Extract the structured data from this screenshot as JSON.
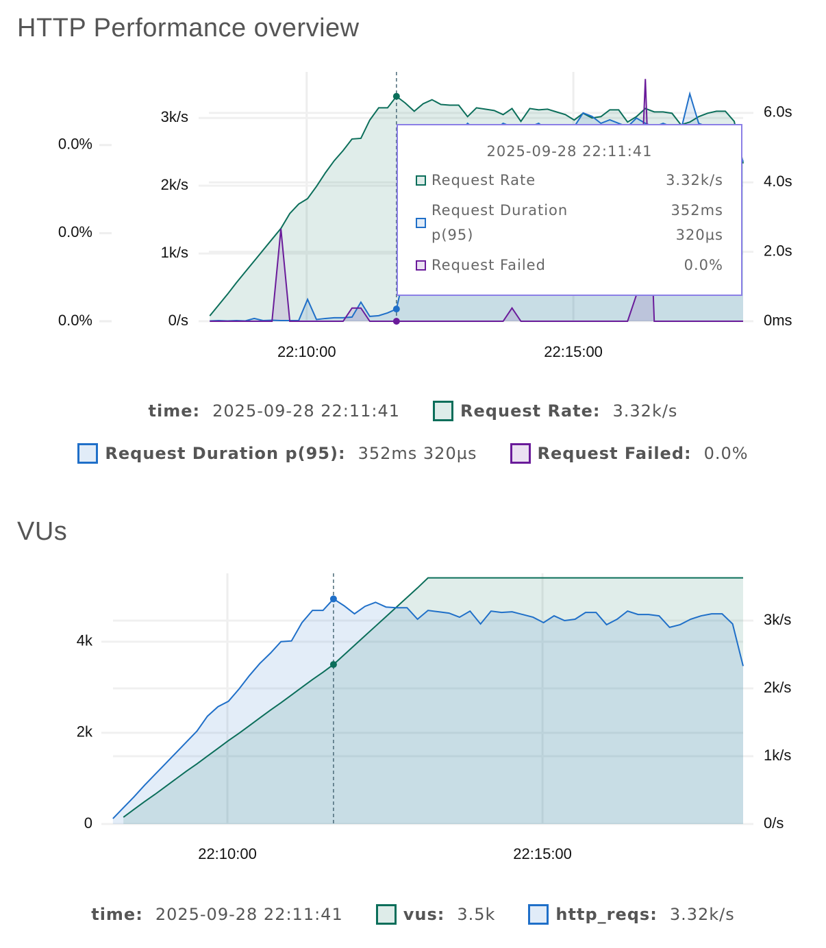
{
  "chart_data": [
    {
      "type": "line",
      "title": "HTTP Performance overview",
      "x": [
        "22:08:11",
        "22:08:21",
        "22:08:31",
        "22:08:41",
        "22:08:51",
        "22:09:01",
        "22:09:11",
        "22:09:21",
        "22:09:31",
        "22:09:41",
        "22:09:51",
        "22:10:01",
        "22:10:11",
        "22:10:21",
        "22:10:31",
        "22:10:41",
        "22:10:51",
        "22:11:01",
        "22:11:11",
        "22:11:21",
        "22:11:31",
        "22:11:41",
        "22:11:51",
        "22:12:01",
        "22:12:11",
        "22:12:21",
        "22:12:31",
        "22:12:41",
        "22:12:51",
        "22:13:01",
        "22:13:11",
        "22:13:21",
        "22:13:31",
        "22:13:41",
        "22:13:51",
        "22:14:01",
        "22:14:11",
        "22:14:21",
        "22:14:31",
        "22:14:41",
        "22:14:51",
        "22:15:01",
        "22:15:11",
        "22:15:21",
        "22:15:31",
        "22:15:41",
        "22:15:51",
        "22:16:01",
        "22:16:11",
        "22:16:21",
        "22:16:31",
        "22:16:41",
        "22:16:51",
        "22:17:01",
        "22:17:11",
        "22:17:21",
        "22:17:31",
        "22:17:41",
        "22:17:51",
        "22:18:01",
        "22:18:11"
      ],
      "xlim": [
        "22:08:10",
        "22:18:11"
      ],
      "xticks": [
        "22:10:00",
        "22:15:00"
      ],
      "ylim": [
        0,
        3680
      ],
      "yticks": [
        {
          "value": 0,
          "label": "0/s"
        },
        {
          "value": 1000,
          "label": "1k/s"
        },
        {
          "value": 2000,
          "label": "2k/s"
        },
        {
          "value": 3000,
          "label": "3k/s"
        }
      ],
      "y2lim": [
        0,
        7.18
      ],
      "y2ticks": [
        {
          "value": 0,
          "label": "0ms"
        },
        {
          "value": 2,
          "label": "2.0s"
        },
        {
          "value": 4,
          "label": "4.0s"
        },
        {
          "value": 6,
          "label": "6.0s"
        }
      ],
      "y3lim": [
        0,
        0.0566
      ],
      "y3ticks": [
        {
          "value": 0,
          "label": "0.0%"
        },
        {
          "value": 0.02,
          "label": "0.0%"
        },
        {
          "value": 0.04,
          "label": "0.0%"
        }
      ],
      "grid": true,
      "series": [
        {
          "name": "Request Rate",
          "color": "#0b6e5a",
          "axis": "y",
          "values": [
            80,
            240,
            400,
            570,
            730,
            890,
            1050,
            1210,
            1370,
            1590,
            1730,
            1810,
            1990,
            2190,
            2370,
            2520,
            2690,
            2700,
            2970,
            3150,
            3150,
            3320,
            3220,
            3100,
            3210,
            3270,
            3200,
            3190,
            3190,
            3020,
            3150,
            3130,
            3110,
            3050,
            3140,
            2950,
            3140,
            3120,
            3130,
            3090,
            3050,
            2970,
            3070,
            3000,
            3020,
            3120,
            3120,
            2940,
            3020,
            3140,
            3090,
            3090,
            3070,
            2900,
            2940,
            3020,
            3070,
            3100,
            3100,
            2950,
            2330
          ]
        },
        {
          "name": "Request Duration p(95)",
          "color": "#1f6fc8",
          "axis": "y2",
          "values": [
            0.01,
            0.02,
            0.01,
            0.02,
            0.01,
            0.08,
            0.02,
            0.03,
            0.02,
            0.02,
            0.02,
            0.63,
            0.05,
            0.08,
            0.1,
            0.1,
            0.12,
            0.55,
            0.14,
            0.16,
            0.24,
            0.35232,
            1.5,
            3.2,
            4.6,
            5.3,
            5.5,
            5.6,
            5.4,
            5.7,
            5.5,
            5.6,
            5.5,
            5.7,
            5.6,
            5.4,
            5.6,
            5.7,
            5.5,
            5.6,
            5.5,
            5.6,
            6.0,
            5.9,
            5.7,
            5.8,
            5.7,
            5.6,
            5.85,
            5.7,
            5.6,
            5.7,
            5.6,
            5.5,
            6.55,
            5.7,
            5.6,
            5.5,
            5.4,
            5.2,
            4.6
          ]
        },
        {
          "name": "Request Failed",
          "color": "#6a1b9a",
          "axis": "y3",
          "values": [
            0,
            0,
            0,
            0,
            0,
            0,
            0,
            0,
            0.021,
            0,
            0,
            0,
            0,
            0,
            0,
            0,
            0.003,
            0.003,
            0,
            0,
            0,
            0,
            0,
            0,
            0,
            0,
            0,
            0,
            0,
            0,
            0,
            0,
            0,
            0,
            0.003,
            0,
            0,
            0,
            0,
            0,
            0,
            0,
            0,
            0,
            0,
            0,
            0,
            0,
            0.006,
            0.055,
            0,
            0,
            0,
            0,
            0,
            0,
            0,
            0,
            0,
            0,
            0
          ]
        }
      ],
      "cursor": {
        "index": 21,
        "label": "time",
        "time": "2025-09-28 22:11:41",
        "value_labels": [
          "3.32k/s",
          "352ms 320µs",
          "0.0%"
        ]
      },
      "tooltip": true
    },
    {
      "type": "line",
      "title": "VUs",
      "x": [
        "22:08:11",
        "22:08:21",
        "22:08:31",
        "22:08:41",
        "22:08:51",
        "22:09:01",
        "22:09:11",
        "22:09:21",
        "22:09:31",
        "22:09:41",
        "22:09:51",
        "22:10:01",
        "22:10:11",
        "22:10:21",
        "22:10:31",
        "22:10:41",
        "22:10:51",
        "22:11:01",
        "22:11:11",
        "22:11:21",
        "22:11:31",
        "22:11:41",
        "22:11:51",
        "22:12:01",
        "22:12:11",
        "22:12:21",
        "22:12:31",
        "22:12:41",
        "22:12:51",
        "22:13:01",
        "22:13:11",
        "22:13:21",
        "22:13:31",
        "22:13:41",
        "22:13:51",
        "22:14:01",
        "22:14:11",
        "22:14:21",
        "22:14:31",
        "22:14:41",
        "22:14:51",
        "22:15:01",
        "22:15:11",
        "22:15:21",
        "22:15:31",
        "22:15:41",
        "22:15:51",
        "22:16:01",
        "22:16:11",
        "22:16:21",
        "22:16:31",
        "22:16:41",
        "22:16:51",
        "22:17:01",
        "22:17:11",
        "22:17:21",
        "22:17:31",
        "22:17:41",
        "22:17:51",
        "22:18:01",
        "22:18:11"
      ],
      "xlim": [
        "22:08:00",
        "22:18:11"
      ],
      "xticks": [
        "22:10:00",
        "22:15:00"
      ],
      "ylim": [
        0,
        5500
      ],
      "yticks": [
        0,
        {
          "value": 2000,
          "label": "2k"
        },
        {
          "value": 4000,
          "label": "4k"
        }
      ],
      "y2lim": [
        0,
        3697
      ],
      "y2ticks": [
        {
          "value": 0,
          "label": "0/s"
        },
        {
          "value": 1000,
          "label": "1k/s"
        },
        {
          "value": 2000,
          "label": "2k/s"
        },
        {
          "value": 3000,
          "label": "3k/s"
        }
      ],
      "grid": true,
      "series": [
        {
          "name": "vus",
          "color": "#0b6e5a",
          "axis": "y",
          "values": [
            null,
            150,
            320,
            490,
            650,
            820,
            990,
            1160,
            1320,
            1490,
            1660,
            1830,
            1990,
            2160,
            2330,
            2500,
            2660,
            2830,
            3000,
            3170,
            3330,
            3500,
            3710,
            3920,
            4130,
            4340,
            4550,
            4760,
            4970,
            5180,
            5400,
            5400,
            5400,
            5400,
            5400,
            5400,
            5400,
            5400,
            5400,
            5400,
            5400,
            5400,
            5400,
            5400,
            5400,
            5400,
            5400,
            5400,
            5400,
            5400,
            5400,
            5400,
            5400,
            5400,
            5400,
            5400,
            5400,
            5400,
            5400,
            5400,
            5400
          ]
        },
        {
          "name": "http_reqs",
          "color": "#1f6fc8",
          "axis": "y2",
          "values": [
            80,
            240,
            400,
            570,
            730,
            890,
            1050,
            1210,
            1370,
            1590,
            1730,
            1810,
            1990,
            2190,
            2370,
            2520,
            2690,
            2700,
            2970,
            3150,
            3150,
            3320,
            3220,
            3100,
            3210,
            3270,
            3200,
            3190,
            3190,
            3020,
            3150,
            3130,
            3110,
            3050,
            3140,
            2950,
            3140,
            3120,
            3130,
            3090,
            3050,
            2970,
            3070,
            3000,
            3020,
            3120,
            3120,
            2940,
            3020,
            3140,
            3090,
            3090,
            3070,
            2900,
            2940,
            3020,
            3070,
            3100,
            3100,
            2950,
            2330
          ]
        }
      ],
      "cursor": {
        "index": 21,
        "label": "time",
        "time": "2025-09-28 22:11:41",
        "value_labels": [
          "3.5k",
          "3.32k/s"
        ]
      },
      "tooltip": false
    }
  ]
}
